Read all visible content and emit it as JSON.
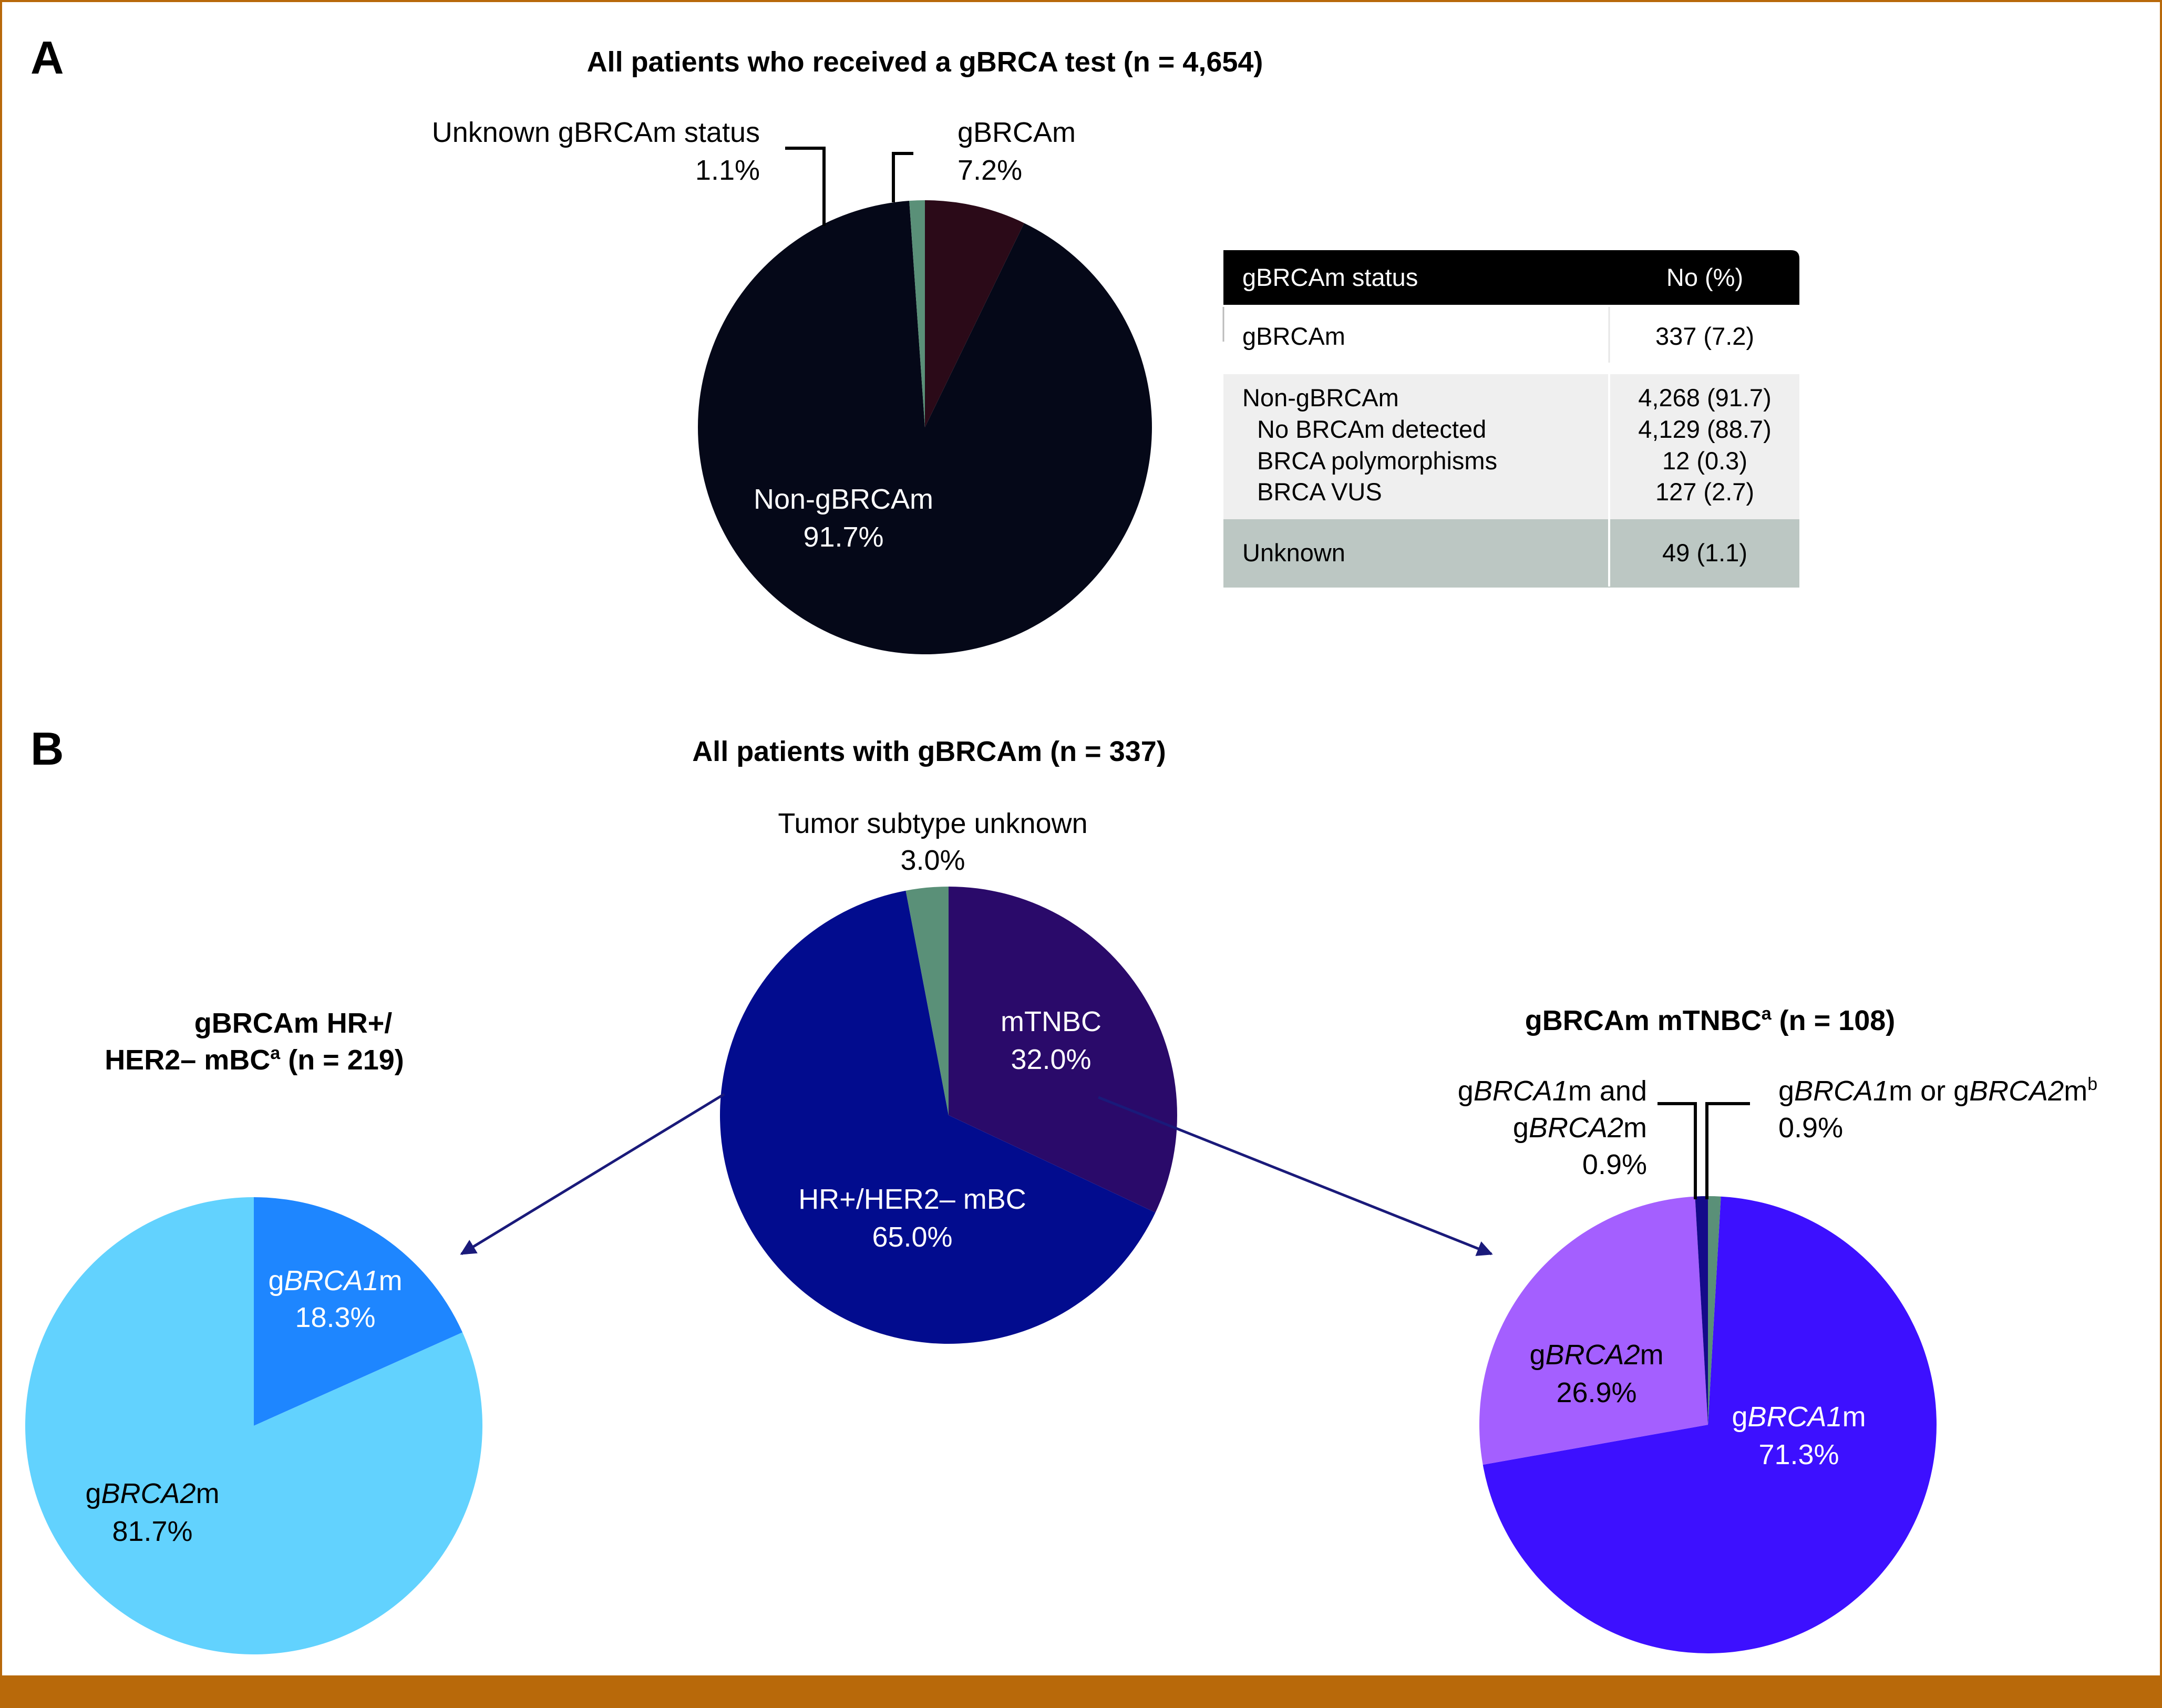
{
  "chart_data": [
    {
      "type": "pie",
      "panel": "A",
      "title": "All patients who received a gBRCA test (n = 4,654)",
      "slices": [
        {
          "label": "gBRCAm",
          "value": 7.2,
          "value_text": "7.2%",
          "color": "#2b0a18"
        },
        {
          "label": "Non-gBRCAm",
          "value": 91.7,
          "value_text": "91.7%",
          "color": "#050818"
        },
        {
          "label": "Unknown gBRCAm status",
          "value": 1.1,
          "value_text": "1.1%",
          "color": "#5a9078"
        }
      ]
    },
    {
      "type": "table",
      "panel": "A",
      "columns": [
        "gBRCAm status",
        "No (%)"
      ],
      "rows": [
        {
          "label": "gBRCAm",
          "value": "337 (7.2)"
        },
        {
          "label": "Non-gBRCAm",
          "value": "4,268 (91.7)"
        },
        {
          "label": "No BRCAm detected",
          "value": "4,129 (88.7)"
        },
        {
          "label": "BRCA polymorphisms",
          "value": "12 (0.3)"
        },
        {
          "label": "BRCA VUS",
          "value": "127 (2.7)"
        },
        {
          "label": "Unknown",
          "value": "49 (1.1)"
        }
      ]
    },
    {
      "type": "pie",
      "panel": "B",
      "title": "All patients with gBRCAm (n = 337)",
      "slices": [
        {
          "label": "mTNBC",
          "value": 32.0,
          "value_text": "32.0%",
          "color": "#2a0a6a"
        },
        {
          "label": "HR+/HER2– mBC",
          "value": 65.0,
          "value_text": "65.0%",
          "color": "#020c8e"
        },
        {
          "label": "Tumor subtype unknown",
          "value": 3.0,
          "value_text": "3.0%",
          "color": "#5a9078"
        }
      ]
    },
    {
      "type": "pie",
      "panel": "B",
      "title_main": "gBRCAm HR+/",
      "title_sub": "HER2– mBC",
      "title_sup": "a",
      "title_tail": " (n = 219)",
      "slices": [
        {
          "label_pre": "g",
          "label_it": "BRCA1",
          "label_post": "m",
          "value": 18.3,
          "value_text": "18.3%",
          "color": "#1e86ff"
        },
        {
          "label_pre": "g",
          "label_it": "BRCA2",
          "label_post": "m",
          "value": 81.7,
          "value_text": "81.7%",
          "color": "#62d2fe"
        }
      ]
    },
    {
      "type": "pie",
      "panel": "B",
      "title_main": "gBRCAm mTNBC",
      "title_sup": "a",
      "title_tail": " (n = 108)",
      "slices": [
        {
          "label_pre": "g",
          "label_it": "BRCA1",
          "label_post": "m",
          "value": 71.3,
          "value_text": "71.3%",
          "color": "#3d10ff"
        },
        {
          "label_pre": "g",
          "label_it": "BRCA2",
          "label_post": "m",
          "value": 26.9,
          "value_text": "26.9%",
          "color": "#a45fff"
        },
        {
          "label_line1_pre": "g",
          "label_line1_it": "BRCA1",
          "label_line1_post": "m and",
          "label_line2_pre": "g",
          "label_line2_it": "BRCA2",
          "label_line2_post": "m",
          "value": 0.9,
          "value_text": "0.9%",
          "color": "#140a8a"
        },
        {
          "label_pre": "g",
          "label_it": "BRCA1",
          "label_mid": "m or g",
          "label_it2": "BRCA2",
          "label_post": "m",
          "label_sup": "b",
          "value": 0.9,
          "value_text": "0.9%",
          "color": "#5a9078"
        }
      ]
    }
  ],
  "panels": {
    "a": "A",
    "b": "B"
  },
  "colors": {
    "frame": "#b8690a",
    "table_header": "#000000",
    "table_shade": "#efefef",
    "table_unknown": "#bcc7c3",
    "arrow": "#1a1a7a"
  }
}
